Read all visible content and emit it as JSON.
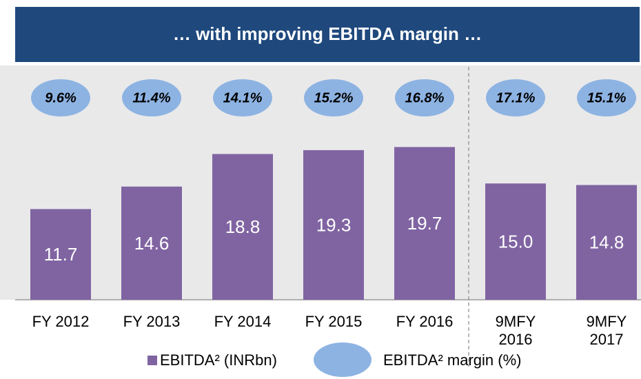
{
  "chart_data": {
    "type": "bar",
    "title": "… with improving EBITDA margin …",
    "categories": [
      "FY 2012",
      "FY 2013",
      "FY 2014",
      "FY 2015",
      "FY 2016",
      "9MFY 2016",
      "9MFY 2017"
    ],
    "series": [
      {
        "name": "EBITDA² (INRbn)",
        "color": "#8064a2",
        "values": [
          11.7,
          14.6,
          18.8,
          19.3,
          19.7,
          15.0,
          14.8
        ],
        "value_labels": [
          "11.7",
          "14.6",
          "18.8",
          "19.3",
          "19.7",
          "15.0",
          "14.8"
        ]
      },
      {
        "name": "EBITDA² margin (%)",
        "color": "#8db3e2",
        "values": [
          9.6,
          11.4,
          14.1,
          15.2,
          16.8,
          17.1,
          15.1
        ],
        "value_labels": [
          "9.6%",
          "11.4%",
          "14.1%",
          "15.2%",
          "16.8%",
          "17.1%",
          "15.1%"
        ]
      }
    ],
    "ylim": [
      0,
      30
    ]
  }
}
